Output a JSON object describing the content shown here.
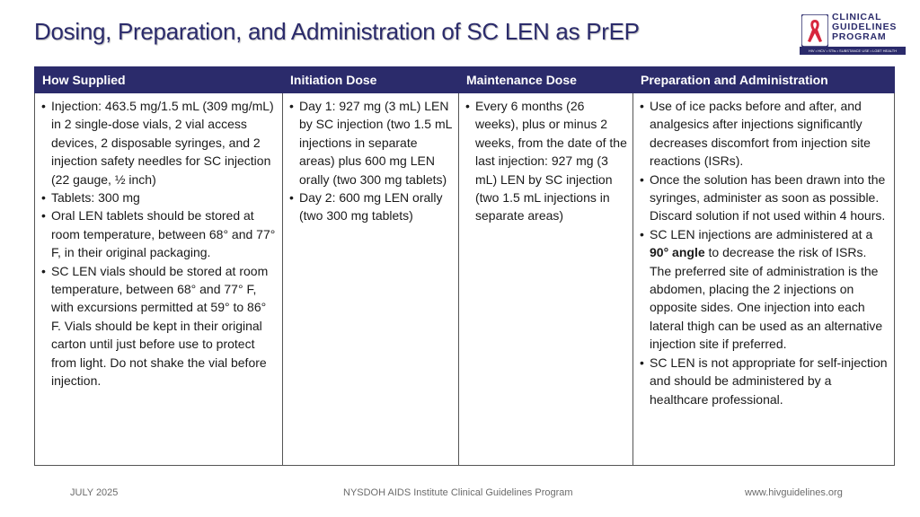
{
  "title": "Dosing, Preparation, and Administration of SC LEN as PrEP",
  "logo": {
    "lines": [
      "CLINICAL",
      "GUIDELINES",
      "PROGRAM"
    ],
    "tagline": "HIV • HCV • STIs • SUBSTANCE USE • LGBT HEALTH",
    "brand_color": "#2b2b6b",
    "ribbon_color": "#d7263d"
  },
  "table": {
    "headers": [
      "How Supplied",
      "Initiation Dose",
      "Maintenance Dose",
      "Preparation and Administration"
    ],
    "col1": [
      "Injection: 463.5 mg/1.5 mL (309 mg/mL) in 2 single-dose vials, 2 vial access devices, 2 disposable syringes, and 2 injection safety needles for SC injection (22 gauge, ½ inch)",
      "Tablets: 300 mg",
      "Oral LEN tablets should be stored at room temperature, between 68° and 77° F, in their original packaging.",
      "SC LEN vials should be stored at room temperature, between 68° and 77° F, with excursions permitted at 59° to 86° F. Vials should be kept in their original carton until just before use to protect from light. Do not shake the vial before injection."
    ],
    "col2": [
      "Day 1: 927 mg (3 mL) LEN by SC injection (two 1.5 mL injections in separate areas) plus 600 mg LEN orally (two 300 mg tablets)",
      "Day 2: 600 mg LEN orally (two 300 mg tablets)"
    ],
    "col3": [
      "Every 6 months (26 weeks), plus or minus 2 weeks, from the date of the last injection: 927 mg (3 mL) LEN by SC injection (two 1.5 mL injections in separate areas)"
    ],
    "col4": {
      "b1": "Use of ice packs before and after, and analgesics after injections significantly decreases discomfort from injection site reactions (ISRs).",
      "b2": "Once the solution has been drawn into the syringes, administer as soon as possible. Discard solution if not used within 4 hours.",
      "b3_pre": "SC LEN injections are administered at a ",
      "b3_bold": "90° angle",
      "b3_post": " to decrease the risk of ISRs. The preferred site of administration is the abdomen, placing the 2 injections on opposite sides. One injection into each lateral thigh can be used as an alternative injection site if preferred.",
      "b4": "SC LEN is not appropriate for self-injection and should be administered by a healthcare professional."
    }
  },
  "footer": {
    "date": "JULY 2025",
    "org": "NYSDOH AIDS Institute Clinical Guidelines Program",
    "url": "www.hivguidelines.org"
  }
}
